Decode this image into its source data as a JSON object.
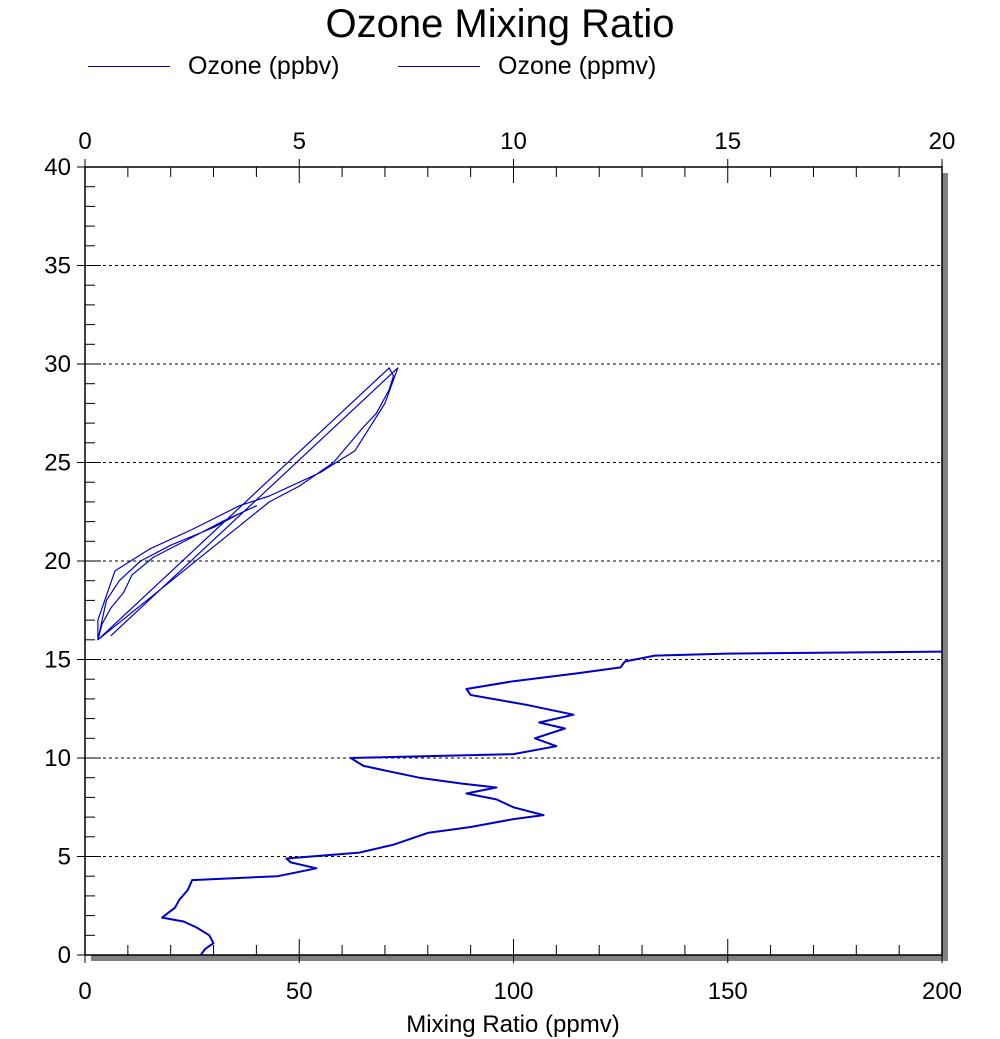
{
  "chart_data": {
    "type": "line",
    "title": "Ozone Mixing Ratio",
    "xlabel": "Mixing Ratio (ppmv)",
    "ylabel": "",
    "x_bottom": {
      "range": [
        0,
        200
      ],
      "ticks": [
        0,
        50,
        100,
        150,
        200
      ]
    },
    "x_top": {
      "range": [
        0,
        20
      ],
      "ticks": [
        0,
        5,
        10,
        15,
        20
      ]
    },
    "y": {
      "range": [
        0,
        40
      ],
      "ticks": [
        0,
        5,
        10,
        15,
        20,
        25,
        30,
        35,
        40
      ]
    },
    "grid": "horizontal dotted",
    "legend": {
      "placement": "top",
      "entries": [
        "Ozone (ppbv)",
        "Ozone (ppmv)"
      ]
    },
    "series": [
      {
        "name": "Ozone (ppbv)",
        "axis": "bottom",
        "color": "#0000cc",
        "points": [
          [
            27,
            0.0
          ],
          [
            28,
            0.3
          ],
          [
            30,
            0.6
          ],
          [
            29,
            1.0
          ],
          [
            26,
            1.4
          ],
          [
            23,
            1.7
          ],
          [
            18,
            1.9
          ],
          [
            21,
            2.4
          ],
          [
            22,
            2.8
          ],
          [
            24,
            3.3
          ],
          [
            25,
            3.8
          ],
          [
            45,
            4.0
          ],
          [
            54,
            4.4
          ],
          [
            48,
            4.7
          ],
          [
            47,
            4.9
          ],
          [
            64,
            5.2
          ],
          [
            72,
            5.6
          ],
          [
            80,
            6.2
          ],
          [
            90,
            6.5
          ],
          [
            100,
            6.9
          ],
          [
            107,
            7.1
          ],
          [
            100,
            7.5
          ],
          [
            96,
            7.9
          ],
          [
            89,
            8.2
          ],
          [
            96,
            8.5
          ],
          [
            88,
            8.7
          ],
          [
            78,
            9.0
          ],
          [
            65,
            9.6
          ],
          [
            62,
            10.0
          ],
          [
            100,
            10.2
          ],
          [
            110,
            10.6
          ],
          [
            105,
            11.0
          ],
          [
            112,
            11.5
          ],
          [
            106,
            11.8
          ],
          [
            114,
            12.2
          ],
          [
            103,
            12.7
          ],
          [
            90,
            13.2
          ],
          [
            89,
            13.5
          ],
          [
            100,
            13.9
          ],
          [
            115,
            14.3
          ],
          [
            125,
            14.6
          ],
          [
            126,
            14.9
          ],
          [
            133,
            15.2
          ],
          [
            150,
            15.3
          ],
          [
            200,
            15.4
          ]
        ]
      },
      {
        "name": "Ozone (ppmv)",
        "axis": "top",
        "color": "#0000cc",
        "points": [
          [
            0.3,
            16.0
          ],
          [
            0.4,
            17.0
          ],
          [
            0.5,
            18.0
          ],
          [
            0.8,
            19.0
          ],
          [
            1.3,
            20.0
          ],
          [
            2.0,
            20.8
          ],
          [
            3.0,
            21.7
          ],
          [
            3.6,
            22.4
          ],
          [
            4.0,
            22.8
          ],
          [
            3.2,
            22.0
          ],
          [
            2.5,
            21.2
          ],
          [
            1.6,
            20.2
          ],
          [
            1.1,
            19.3
          ],
          [
            0.9,
            18.4
          ],
          [
            0.6,
            17.6
          ],
          [
            0.4,
            16.8
          ],
          [
            0.3,
            16.0
          ],
          [
            4.3,
            23.0
          ],
          [
            5.0,
            23.8
          ],
          [
            5.8,
            25.0
          ],
          [
            6.5,
            26.8
          ],
          [
            6.8,
            27.5
          ],
          [
            7.1,
            28.7
          ],
          [
            7.2,
            29.4
          ],
          [
            7.1,
            29.8
          ],
          [
            0.3,
            16.0
          ],
          [
            0.3,
            17.0
          ],
          [
            0.7,
            19.5
          ],
          [
            1.5,
            20.6
          ],
          [
            2.5,
            21.6
          ],
          [
            3.6,
            22.8
          ],
          [
            4.3,
            23.3
          ],
          [
            5.5,
            24.5
          ],
          [
            6.3,
            25.6
          ],
          [
            7.0,
            28.0
          ],
          [
            7.3,
            29.8
          ],
          [
            0.6,
            16.2
          ]
        ]
      }
    ]
  }
}
